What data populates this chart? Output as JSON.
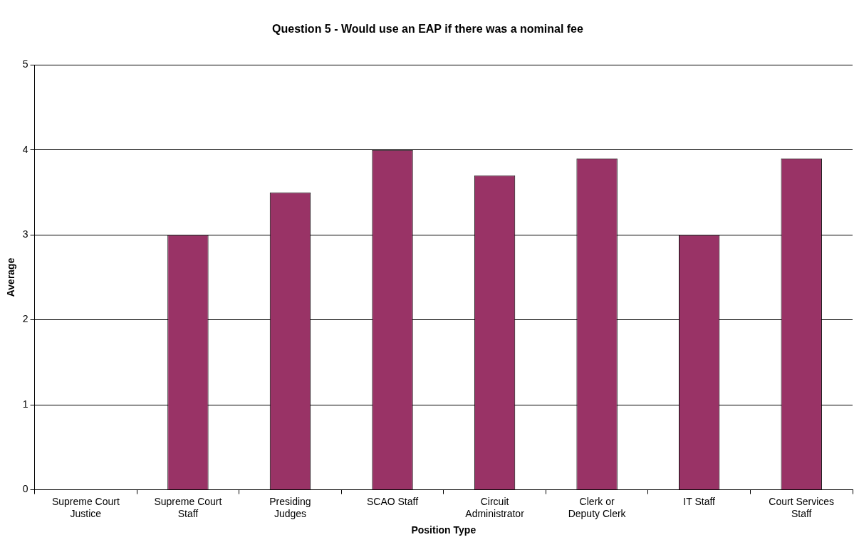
{
  "chart_data": {
    "type": "bar",
    "title": "Question 5 - Would use an EAP if there was a nominal fee",
    "xlabel": "Position Type",
    "ylabel": "Average",
    "categories": [
      "Supreme Court Justice",
      "Supreme Court Staff",
      "Presiding Judges",
      "SCAO Staff",
      "Circuit Administrator",
      "Clerk or Deputy Clerk",
      "IT Staff",
      "Court Services Staff"
    ],
    "values": [
      null,
      3,
      3.5,
      4,
      3.7,
      3.9,
      3,
      3.9
    ],
    "color": "#993366",
    "ylim": [
      0,
      5
    ],
    "yticks": [
      0,
      1,
      2,
      3,
      4,
      5
    ],
    "grid": "y",
    "legend": false
  }
}
